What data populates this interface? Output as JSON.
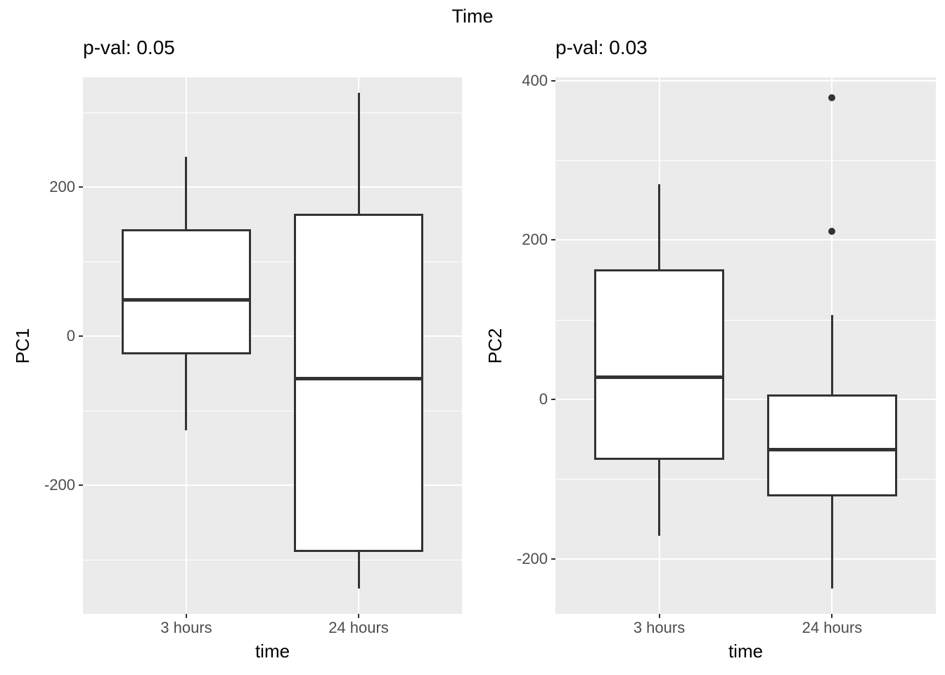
{
  "title": "Time",
  "chart_data": [
    {
      "type": "boxplot",
      "subtitle": "p-val: 0.05",
      "ylabel": "PC1",
      "xlabel": "time",
      "categories": [
        "3 hours",
        "24 hours"
      ],
      "yticks": [
        200,
        0,
        -200
      ],
      "minor_ticks": [
        300,
        100,
        -100,
        -300
      ],
      "ylim": [
        -373,
        347
      ],
      "grid": "on",
      "boxes": [
        {
          "category": "3 hours",
          "whisker_low": -127,
          "q1": -25,
          "median": 48,
          "q3": 143,
          "whisker_high": 240,
          "outliers": []
        },
        {
          "category": "24 hours",
          "whisker_low": -339,
          "q1": -290,
          "median": -57,
          "q3": 164,
          "whisker_high": 326,
          "outliers": []
        }
      ]
    },
    {
      "type": "boxplot",
      "subtitle": "p-val: 0.03",
      "ylabel": "PC2",
      "xlabel": "time",
      "categories": [
        "3 hours",
        "24 hours"
      ],
      "yticks": [
        400,
        200,
        0,
        -200
      ],
      "minor_ticks": [
        300,
        100,
        -100
      ],
      "ylim": [
        -269,
        404
      ],
      "grid": "on",
      "boxes": [
        {
          "category": "3 hours",
          "whisker_low": -171,
          "q1": -76,
          "median": 28,
          "q3": 163,
          "whisker_high": 270,
          "outliers": []
        },
        {
          "category": "24 hours",
          "whisker_low": -237,
          "q1": -122,
          "median": -63,
          "q3": 6,
          "whisker_high": 106,
          "outliers": [
            211,
            378
          ]
        }
      ]
    }
  ]
}
